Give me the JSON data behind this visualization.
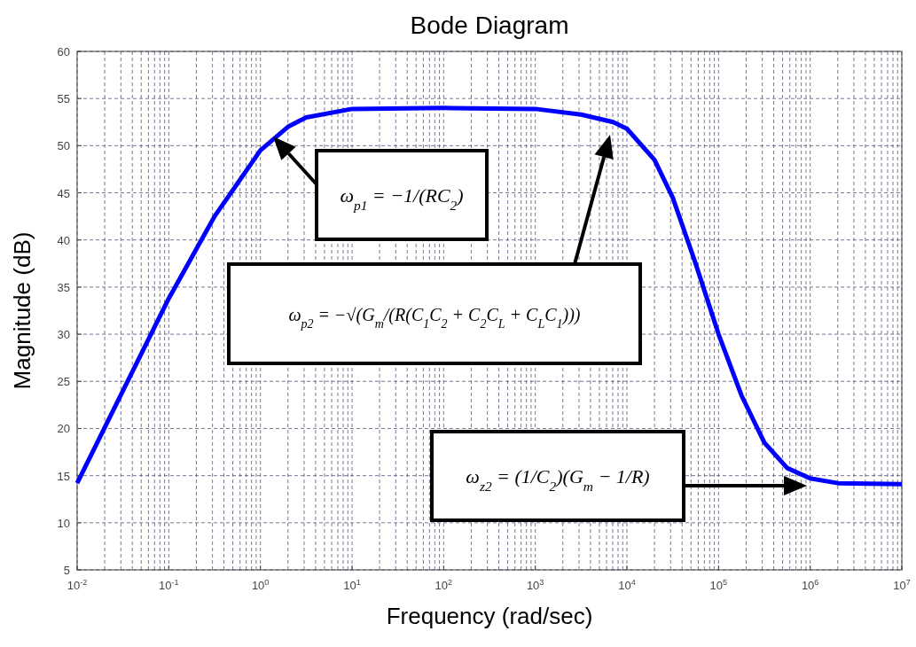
{
  "chart_data": {
    "type": "line",
    "title": "Bode Diagram",
    "xlabel": "Frequency  (rad/sec)",
    "ylabel": "Magnitude (dB)",
    "log": "x",
    "grid": true,
    "marker": "none",
    "line_style": "solid",
    "x": [
      0.01,
      0.0316,
      0.1,
      0.316,
      1,
      2,
      3.16,
      10,
      100,
      1000,
      3160,
      7080,
      10000,
      20000,
      31600,
      56200,
      100000,
      178000,
      316000,
      562000,
      1000000,
      2000000,
      10000000
    ],
    "series": [
      {
        "color": "#0000ff",
        "values": [
          14.2,
          24,
          33.8,
          42.5,
          49.5,
          52,
          53,
          53.9,
          54,
          53.9,
          53.3,
          52.5,
          51.8,
          48.5,
          44.5,
          37.5,
          30,
          23.5,
          18.5,
          15.8,
          14.7,
          14.2,
          14.1
        ]
      }
    ],
    "xlim": [
      0.01,
      10000000
    ],
    "xticks": [
      {
        "value": 0.01,
        "label": "10$^{-2}$"
      },
      {
        "value": 0.1,
        "label": "10$^{-1}$"
      },
      {
        "value": 1,
        "label": "10$^{0}$"
      },
      {
        "value": 10,
        "label": "10$^{1}$"
      },
      {
        "value": 100,
        "label": "10$^{2}$"
      },
      {
        "value": 1000,
        "label": "10$^{3}$"
      },
      {
        "value": 10000,
        "label": "10$^{4}$"
      },
      {
        "value": 100000,
        "label": "10$^{5}$"
      },
      {
        "value": 1000000,
        "label": "10$^{6}$"
      },
      {
        "value": 10000000,
        "label": "10$^{7}$"
      }
    ],
    "ylim": [
      5,
      60
    ],
    "yticks": [
      5,
      10,
      15,
      20,
      25,
      30,
      35,
      40,
      45,
      50,
      55,
      60
    ],
    "annotations": [
      "ω$_{p1}$ = −1/(RC$_{2}$)",
      "ω$_{p2}$ = −√(G$_{m}$/(R(C$_{1}$C$_{2}$ + C$_{2}$C$_{L}$ + C$_{L}$C$_{1}$)))",
      "ω$_{z2}$ = (1/C$_{2}$)(G$_{m}$ − 1/R)"
    ]
  }
}
